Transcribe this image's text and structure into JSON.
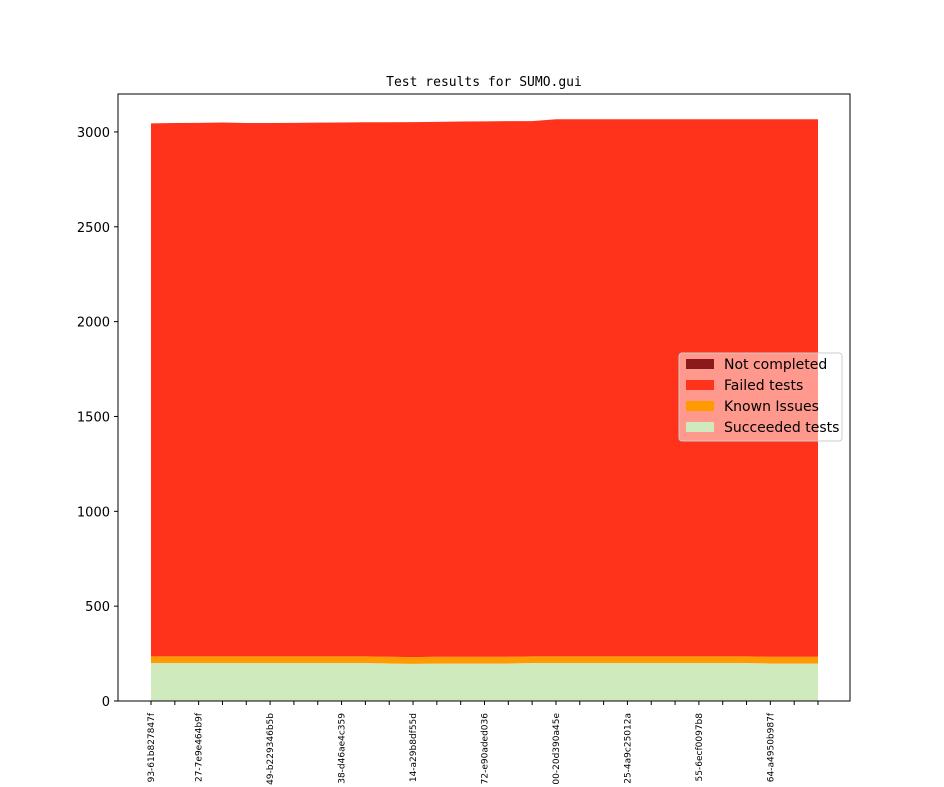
{
  "chart_data": {
    "type": "area",
    "title": "Test results for SUMO.gui",
    "xlabel": "",
    "ylabel": "",
    "ylim": [
      0,
      3200
    ],
    "yticks": [
      0,
      500,
      1000,
      1500,
      2000,
      2500,
      3000
    ],
    "grid": false,
    "legend_position": "center-right",
    "x": [
      "93-61b827847f",
      "",
      "27-7e9e464b9f",
      "",
      "",
      "49-b229346b5b",
      "",
      "",
      "38-d46ae4c359",
      "",
      "",
      "14-a29b8df55d",
      "",
      "",
      "72-e90aded036",
      "",
      "",
      "00-20d390a45e",
      "",
      "",
      "25-4a9c25012a",
      "",
      "",
      "55-6ecf0097b8",
      "",
      "",
      "64-a4950b987f",
      "",
      ""
    ],
    "series": [
      {
        "name": "Succeeded tests",
        "color": "#cfeabd",
        "values": [
          200,
          200,
          200,
          200,
          200,
          200,
          200,
          200,
          200,
          200,
          198,
          196,
          198,
          198,
          198,
          198,
          200,
          200,
          200,
          200,
          200,
          200,
          200,
          200,
          200,
          200,
          198,
          198,
          198
        ]
      },
      {
        "name": "Known Issues",
        "color": "#ff9b00",
        "values": [
          35,
          35,
          35,
          35,
          35,
          35,
          35,
          35,
          35,
          35,
          35,
          35,
          35,
          35,
          35,
          35,
          35,
          35,
          35,
          35,
          35,
          35,
          35,
          35,
          35,
          35,
          35,
          35,
          35
        ]
      },
      {
        "name": "Failed tests",
        "color": "#ff331b",
        "values": [
          2810,
          2812,
          2813,
          2815,
          2812,
          2812,
          2813,
          2814,
          2815,
          2816,
          2818,
          2821,
          2820,
          2822,
          2823,
          2824,
          2822,
          2832,
          2832,
          2832,
          2832,
          2832,
          2832,
          2832,
          2832,
          2832,
          2834,
          2834,
          2834
        ]
      },
      {
        "name": "Not completed",
        "color": "#8b1a1a",
        "values": [
          0,
          0,
          0,
          0,
          0,
          0,
          0,
          0,
          0,
          0,
          0,
          0,
          0,
          0,
          0,
          0,
          0,
          0,
          0,
          0,
          0,
          0,
          0,
          0,
          0,
          0,
          0,
          0,
          0
        ]
      }
    ],
    "legend_order": [
      "Not completed",
      "Failed tests",
      "Known Issues",
      "Succeeded tests"
    ]
  }
}
